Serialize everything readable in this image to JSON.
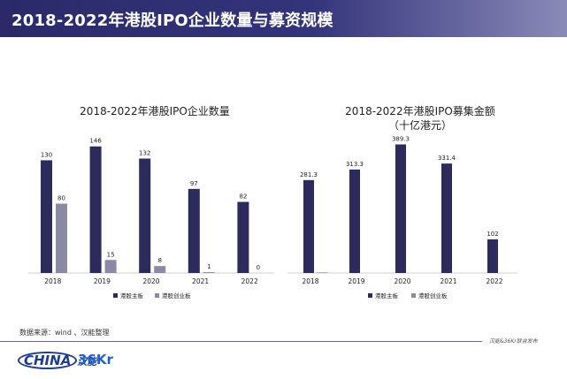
{
  "header": {
    "title": "2018-2022年港股IPO企业数量与募资规模"
  },
  "chart_data": [
    {
      "type": "bar",
      "title": "2018-2022年港股IPO企业数量",
      "categories": [
        "2018",
        "2019",
        "2020",
        "2021",
        "2022"
      ],
      "series": [
        {
          "name": "港股主板",
          "values": [
            130,
            146,
            132,
            97,
            82
          ],
          "color": "#2d2a5c"
        },
        {
          "name": "港股创业板",
          "values": [
            80,
            15,
            8,
            1,
            0
          ],
          "color": "#8a8aa6"
        }
      ],
      "data_labels": {
        "港股主板": [
          "130",
          "146",
          "132",
          "97",
          "82"
        ],
        "港股创业板": [
          "80",
          "15",
          "8",
          "1",
          "0"
        ]
      },
      "ylim": [
        0,
        160
      ],
      "grid": false,
      "legend": "bottom"
    },
    {
      "type": "bar",
      "title": "2018-2022年港股IPO募集金额",
      "subtitle": "（十亿港元）",
      "categories": [
        "2018",
        "2019",
        "2020",
        "2021",
        "2022"
      ],
      "series": [
        {
          "name": "港股主板",
          "values": [
            281.3,
            313.3,
            389.3,
            331.4,
            102
          ],
          "color": "#2d2a5c"
        },
        {
          "name": "港股创业板",
          "values": [
            1.7,
            0,
            0,
            0,
            0
          ],
          "color": "#8a8aa6"
        }
      ],
      "data_labels": {
        "港股主板": [
          "281.3",
          "313.3",
          "389.3",
          "331.4",
          "102"
        ]
      },
      "ylim": [
        0,
        420
      ],
      "grid": false,
      "legend": "bottom"
    }
  ],
  "footer": {
    "source": "数据来源：wind 、汉能整理",
    "credit": "汉能&36Kr联合发布",
    "logo_china": "CHINA",
    "logo_china_suffix": "汉能",
    "logo_36kr": "36Kr"
  }
}
